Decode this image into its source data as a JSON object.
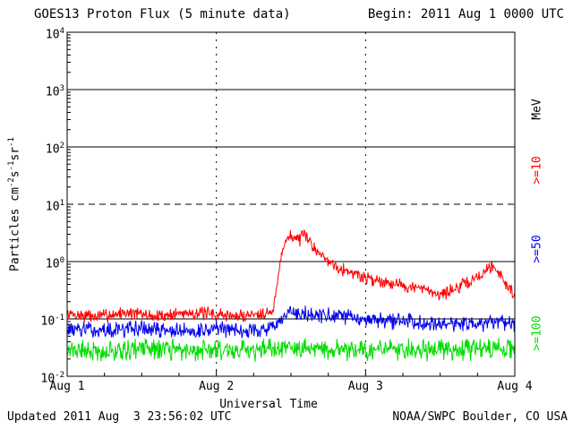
{
  "header": {
    "title": "GOES13 Proton Flux (5 minute data)",
    "begin_label": "Begin: 2011 Aug 1 0000 UTC"
  },
  "footer": {
    "updated": "Updated 2011 Aug  3 23:56:02 UTC",
    "credit": "NOAA/SWPC Boulder, CO USA"
  },
  "chart_data": {
    "type": "line",
    "title": "GOES13 Proton Flux (5 minute data)",
    "xlabel": "Universal Time",
    "ylabel": "Particles cm-2 s-1 sr-1",
    "ylabel_parts": [
      {
        "t": "Particles cm",
        "sup": false
      },
      {
        "t": "-2",
        "sup": true
      },
      {
        "t": "s",
        "sup": false
      },
      {
        "t": "-1",
        "sup": true
      },
      {
        "t": "sr",
        "sup": false
      },
      {
        "t": "-1",
        "sup": true
      }
    ],
    "x_units": "days from 2011 Aug 1 0000 UTC",
    "xlim_days": [
      0,
      3
    ],
    "ylim": [
      0.01,
      10000
    ],
    "y_scale": "log",
    "grid": true,
    "y_tick_base": "10",
    "y_ticks": [
      -2,
      -1,
      0,
      1,
      2,
      3,
      4
    ],
    "x_ticks": [
      {
        "x": 0,
        "label": "Aug 1"
      },
      {
        "x": 1,
        "label": "Aug 2"
      },
      {
        "x": 2,
        "label": "Aug 3"
      },
      {
        "x": 3,
        "label": "Aug 4"
      }
    ],
    "hlines": [
      {
        "y": 1000,
        "style": "solid"
      },
      {
        "y": 100,
        "style": "solid"
      },
      {
        "y": 10,
        "style": "dashed"
      },
      {
        "y": 1,
        "style": "solid"
      },
      {
        "y": 0.1,
        "style": "solid"
      }
    ],
    "vlines": [
      {
        "x": 1
      },
      {
        "x": 2
      }
    ],
    "right_labels": [
      {
        "text": "MeV",
        "color": "#000000"
      },
      {
        "text": ">=10",
        "color": "#ff0000"
      },
      {
        "text": ">=50",
        "color": "#0000ee"
      },
      {
        "text": ">=100",
        "color": "#00dd00"
      }
    ],
    "sample_step": 0.004,
    "series": [
      {
        "name": ">=10 MeV",
        "color": "#ff0000",
        "noise": 0.14,
        "seed": 7,
        "points": [
          [
            0.0,
            0.12
          ],
          [
            0.2,
            0.11
          ],
          [
            0.4,
            0.13
          ],
          [
            0.6,
            0.11
          ],
          [
            0.8,
            0.13
          ],
          [
            1.0,
            0.12
          ],
          [
            1.15,
            0.11
          ],
          [
            1.3,
            0.13
          ],
          [
            1.38,
            0.13
          ],
          [
            1.41,
            0.45
          ],
          [
            1.44,
            1.6
          ],
          [
            1.47,
            2.5
          ],
          [
            1.51,
            2.8
          ],
          [
            1.55,
            2.4
          ],
          [
            1.59,
            2.8
          ],
          [
            1.63,
            2.2
          ],
          [
            1.67,
            1.6
          ],
          [
            1.71,
            1.25
          ],
          [
            1.76,
            1.0
          ],
          [
            1.82,
            0.8
          ],
          [
            1.9,
            0.65
          ],
          [
            2.0,
            0.52
          ],
          [
            2.1,
            0.46
          ],
          [
            2.2,
            0.42
          ],
          [
            2.3,
            0.36
          ],
          [
            2.4,
            0.32
          ],
          [
            2.5,
            0.27
          ],
          [
            2.6,
            0.33
          ],
          [
            2.7,
            0.45
          ],
          [
            2.78,
            0.6
          ],
          [
            2.84,
            0.85
          ],
          [
            2.89,
            0.7
          ],
          [
            2.94,
            0.4
          ],
          [
            3.0,
            0.27
          ]
        ]
      },
      {
        "name": ">=50 MeV",
        "color": "#0000ee",
        "noise": 0.17,
        "seed": 13,
        "points": [
          [
            0.0,
            0.068
          ],
          [
            0.25,
            0.062
          ],
          [
            0.5,
            0.07
          ],
          [
            0.75,
            0.06
          ],
          [
            1.0,
            0.068
          ],
          [
            1.25,
            0.063
          ],
          [
            1.4,
            0.07
          ],
          [
            1.48,
            0.125
          ],
          [
            1.6,
            0.12
          ],
          [
            1.75,
            0.112
          ],
          [
            1.9,
            0.105
          ],
          [
            2.1,
            0.096
          ],
          [
            2.3,
            0.09
          ],
          [
            2.5,
            0.085
          ],
          [
            2.7,
            0.082
          ],
          [
            2.85,
            0.088
          ],
          [
            3.0,
            0.075
          ]
        ]
      },
      {
        "name": ">=100 MeV",
        "color": "#00dd00",
        "noise": 0.22,
        "seed": 21,
        "points": [
          [
            0.0,
            0.03
          ],
          [
            0.25,
            0.027
          ],
          [
            0.5,
            0.031
          ],
          [
            0.75,
            0.028
          ],
          [
            1.0,
            0.03
          ],
          [
            1.25,
            0.028
          ],
          [
            1.5,
            0.031
          ],
          [
            1.75,
            0.029
          ],
          [
            2.0,
            0.03
          ],
          [
            2.25,
            0.028
          ],
          [
            2.5,
            0.03
          ],
          [
            2.75,
            0.029
          ],
          [
            3.0,
            0.03
          ]
        ]
      }
    ]
  }
}
